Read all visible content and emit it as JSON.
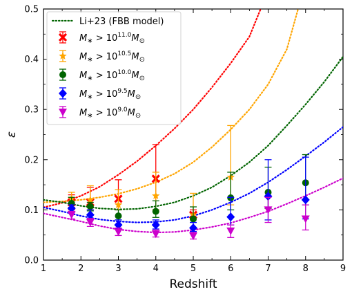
{
  "chart_data": {
    "type": "scatter",
    "xlabel": "Redshift",
    "ylabel": "ε",
    "xlim": [
      1,
      9
    ],
    "ylim": [
      0,
      0.5
    ],
    "xticks": [
      1,
      2,
      3,
      4,
      5,
      6,
      7,
      8,
      9
    ],
    "yticks": [
      0.0,
      0.1,
      0.2,
      0.3,
      0.4,
      0.5
    ],
    "legend_position": "top-left",
    "grid": false,
    "model": {
      "name": "Li+23 (FBB model)",
      "linestyle": "dotted",
      "curves": [
        {
          "color": "#ff0000",
          "x": [
            1.0,
            1.5,
            2.0,
            2.5,
            3.0,
            3.5,
            4.0,
            4.5,
            5.0,
            5.5,
            6.0,
            6.5,
            6.8
          ],
          "y": [
            0.105,
            0.114,
            0.128,
            0.146,
            0.17,
            0.197,
            0.228,
            0.262,
            0.3,
            0.344,
            0.392,
            0.445,
            0.5
          ]
        },
        {
          "color": "#ffa500",
          "x": [
            1.0,
            1.5,
            2.0,
            2.5,
            3.0,
            3.5,
            4.0,
            4.5,
            5.0,
            5.5,
            6.0,
            6.5,
            7.0,
            7.5,
            7.8
          ],
          "y": [
            0.115,
            0.117,
            0.12,
            0.125,
            0.132,
            0.142,
            0.155,
            0.172,
            0.195,
            0.225,
            0.26,
            0.3,
            0.35,
            0.42,
            0.5
          ]
        },
        {
          "color": "#006400",
          "x": [
            1.0,
            1.5,
            2.0,
            2.5,
            3.0,
            3.5,
            4.0,
            4.5,
            5.0,
            5.5,
            6.0,
            6.5,
            7.0,
            7.5,
            8.0,
            8.5,
            9.0
          ],
          "y": [
            0.12,
            0.115,
            0.108,
            0.103,
            0.101,
            0.102,
            0.107,
            0.115,
            0.128,
            0.145,
            0.168,
            0.195,
            0.228,
            0.268,
            0.31,
            0.355,
            0.405
          ]
        },
        {
          "color": "#0000ff",
          "x": [
            1.0,
            1.5,
            2.0,
            2.5,
            3.0,
            3.5,
            4.0,
            4.5,
            5.0,
            5.5,
            6.0,
            6.5,
            7.0,
            7.5,
            8.0,
            8.5,
            9.0
          ],
          "y": [
            0.105,
            0.097,
            0.088,
            0.081,
            0.077,
            0.075,
            0.076,
            0.08,
            0.088,
            0.1,
            0.115,
            0.133,
            0.155,
            0.18,
            0.207,
            0.235,
            0.265
          ]
        },
        {
          "color": "#cc00cc",
          "x": [
            1.0,
            1.5,
            2.0,
            2.5,
            3.0,
            3.5,
            4.0,
            4.5,
            5.0,
            5.5,
            6.0,
            6.5,
            7.0,
            7.5,
            8.0,
            8.5,
            9.0
          ],
          "y": [
            0.093,
            0.085,
            0.077,
            0.068,
            0.061,
            0.057,
            0.055,
            0.056,
            0.06,
            0.066,
            0.074,
            0.085,
            0.097,
            0.112,
            0.128,
            0.145,
            0.163
          ]
        }
      ]
    },
    "series": [
      {
        "name_base": "M",
        "name_sub": "∗",
        "name_mid": " > 10",
        "name_exp": "11.0",
        "name_unit_base": "M",
        "name_unit_sub": "⊙",
        "color": "#ff0000",
        "marker": "x",
        "x": [
          1.75,
          2.25,
          3.0,
          4.0,
          5.0
        ],
        "y": [
          0.115,
          0.115,
          0.122,
          0.162,
          0.09
        ],
        "yerr_low": [
          0.1,
          0.1,
          0.1,
          0.1,
          0.085
        ],
        "yerr_high": [
          0.13,
          0.145,
          0.16,
          0.23,
          0.1
        ]
      },
      {
        "name_base": "M",
        "name_sub": "∗",
        "name_mid": " > 10",
        "name_exp": "10.5",
        "name_unit_base": "M",
        "name_unit_sub": "⊙",
        "color": "#ffa500",
        "marker": "star",
        "x": [
          1.75,
          2.25,
          3.0,
          4.0,
          5.0,
          6.0
        ],
        "y": [
          0.123,
          0.12,
          0.11,
          0.128,
          0.09,
          0.165
        ],
        "yerr_low": [
          0.11,
          0.107,
          0.1,
          0.1,
          0.08,
          0.11
        ],
        "yerr_high": [
          0.135,
          0.148,
          0.14,
          0.175,
          0.133,
          0.268
        ]
      },
      {
        "name_base": "M",
        "name_sub": "∗",
        "name_mid": " > 10",
        "name_exp": "10.0",
        "name_unit_base": "M",
        "name_unit_sub": "⊙",
        "color": "#006400",
        "marker": "circle",
        "x": [
          1.75,
          2.25,
          3.0,
          4.0,
          5.0,
          6.0,
          7.0,
          8.0
        ],
        "y": [
          0.113,
          0.107,
          0.088,
          0.097,
          0.082,
          0.124,
          0.135,
          0.154
        ],
        "yerr_low": [
          0.105,
          0.098,
          0.08,
          0.085,
          0.075,
          0.1,
          0.103,
          0.11
        ],
        "yerr_high": [
          0.125,
          0.115,
          0.1,
          0.118,
          0.106,
          0.175,
          0.185,
          0.21
        ]
      },
      {
        "name_base": "M",
        "name_sub": "∗",
        "name_mid": " > 10",
        "name_exp": "9.5",
        "name_unit_base": "M",
        "name_unit_sub": "⊙",
        "color": "#0000ff",
        "marker": "diamond",
        "x": [
          1.75,
          2.25,
          3.0,
          4.0,
          5.0,
          6.0,
          7.0,
          8.0
        ],
        "y": [
          0.103,
          0.09,
          0.07,
          0.07,
          0.064,
          0.086,
          0.127,
          0.12
        ],
        "yerr_low": [
          0.097,
          0.082,
          0.063,
          0.062,
          0.057,
          0.07,
          0.08,
          0.082
        ],
        "yerr_high": [
          0.11,
          0.1,
          0.08,
          0.08,
          0.075,
          0.125,
          0.2,
          0.205
        ]
      },
      {
        "name_base": "M",
        "name_sub": "∗",
        "name_mid": " > 10",
        "name_exp": "9.0",
        "name_unit_base": "M",
        "name_unit_sub": "⊙",
        "color": "#cc00cc",
        "marker": "triangle-down",
        "x": [
          1.75,
          2.25,
          3.0,
          4.0,
          5.0,
          6.0,
          7.0,
          8.0
        ],
        "y": [
          0.09,
          0.075,
          0.056,
          0.052,
          0.048,
          0.058,
          0.1,
          0.082
        ],
        "yerr_low": [
          0.082,
          0.067,
          0.049,
          0.046,
          0.042,
          0.045,
          0.075,
          0.06
        ],
        "yerr_high": [
          0.097,
          0.083,
          0.064,
          0.06,
          0.055,
          0.07,
          0.125,
          0.11
        ]
      }
    ]
  }
}
